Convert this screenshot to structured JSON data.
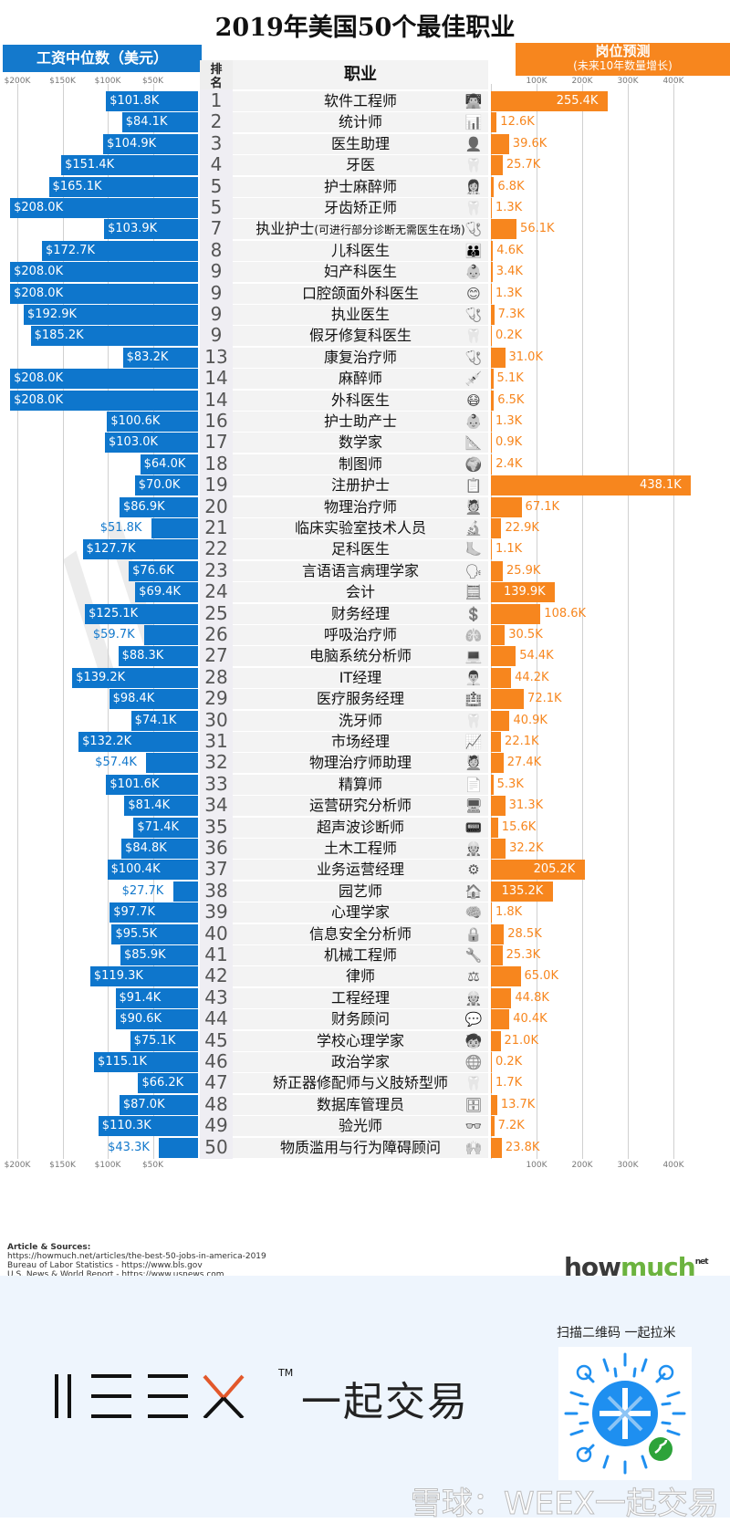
{
  "title": "2019年美国50个最佳职业",
  "headers": {
    "salary": "工资中位数（美元）",
    "rank": "排名",
    "occupation": "职业",
    "jobs_title": "岗位预测",
    "jobs_subtitle": "(未来10年数量增长)"
  },
  "salary_ticks": [
    "$200K",
    "$150K",
    "$100K",
    "$50K"
  ],
  "jobs_ticks": [
    "100K",
    "200K",
    "300K",
    "400K"
  ],
  "sources": {
    "heading": "Article & Sources:",
    "lines": [
      "https://howmuch.net/articles/the-best-50-jobs-in-america-2019",
      "Bureau of Labor Statistics - https://www.bls.gov",
      "U.S. News & World Report - https://www.usnews.com"
    ]
  },
  "brand": {
    "how": "how",
    "much": "much",
    "net": "net"
  },
  "footer": {
    "weex_tm": "TM",
    "weex_text": "一起交易",
    "qr_caption": "扫描二维码 一起拉米",
    "watermark": "雪球：WEEX一起交易"
  },
  "colors": {
    "salary": "#0e76cc",
    "jobs": "#f7861e",
    "brand_green": "#6cb33f"
  },
  "chart_data": {
    "type": "bar",
    "title": "2019年美国50个最佳职业",
    "xlabel": "",
    "series": [
      {
        "name": "工资中位数（美元）",
        "unit": "$K",
        "axis_ticks": [
          200,
          150,
          100,
          50
        ],
        "xlim": [
          0,
          210
        ],
        "direction": "leftward"
      },
      {
        "name": "岗位预测 (未来10年数量增长)",
        "unit": "K",
        "axis_ticks": [
          100,
          200,
          300,
          400
        ],
        "xlim": [
          0,
          440
        ],
        "direction": "rightward"
      }
    ],
    "grid": true,
    "rows": [
      {
        "rank": "1",
        "occupation": "软件工程师",
        "salary": 101.8,
        "salary_label": "$101.8K",
        "jobs": 255.4,
        "jobs_label": "255.4K",
        "icon": "👨‍💻"
      },
      {
        "rank": "2",
        "occupation": "统计师",
        "salary": 84.1,
        "salary_label": "$84.1K",
        "jobs": 12.6,
        "jobs_label": "12.6K",
        "icon": "📊"
      },
      {
        "rank": "3",
        "occupation": "医生助理",
        "salary": 104.9,
        "salary_label": "$104.9K",
        "jobs": 39.6,
        "jobs_label": "39.6K",
        "icon": "👤"
      },
      {
        "rank": "4",
        "occupation": "牙医",
        "salary": 151.4,
        "salary_label": "$151.4K",
        "jobs": 25.7,
        "jobs_label": "25.7K",
        "icon": "🦷"
      },
      {
        "rank": "5",
        "occupation": "护士麻醉师",
        "salary": 165.1,
        "salary_label": "$165.1K",
        "jobs": 6.8,
        "jobs_label": "6.8K",
        "icon": "👩‍⚕️"
      },
      {
        "rank": "5",
        "occupation": "牙齿矫正师",
        "salary": 208.0,
        "salary_label": "$208.0K",
        "jobs": 1.3,
        "jobs_label": "1.3K",
        "icon": "🦷"
      },
      {
        "rank": "7",
        "occupation": "执业护士",
        "occupation_note": "(可进行部分诊断无需医生在场)",
        "salary": 103.9,
        "salary_label": "$103.9K",
        "jobs": 56.1,
        "jobs_label": "56.1K",
        "icon": "🩺"
      },
      {
        "rank": "8",
        "occupation": "儿科医生",
        "salary": 172.7,
        "salary_label": "$172.7K",
        "jobs": 4.6,
        "jobs_label": "4.6K",
        "icon": "👪"
      },
      {
        "rank": "9",
        "occupation": "妇产科医生",
        "salary": 208.0,
        "salary_label": "$208.0K",
        "jobs": 3.4,
        "jobs_label": "3.4K",
        "icon": "👶"
      },
      {
        "rank": "9",
        "occupation": "口腔颌面外科医生",
        "salary": 208.0,
        "salary_label": "$208.0K",
        "jobs": 1.3,
        "jobs_label": "1.3K",
        "icon": "😊"
      },
      {
        "rank": "9",
        "occupation": "执业医生",
        "salary": 192.9,
        "salary_label": "$192.9K",
        "jobs": 7.3,
        "jobs_label": "7.3K",
        "icon": "🩺"
      },
      {
        "rank": "9",
        "occupation": "假牙修复科医生",
        "salary": 185.2,
        "salary_label": "$185.2K",
        "jobs": 0.2,
        "jobs_label": "0.2K",
        "icon": "🦷"
      },
      {
        "rank": "13",
        "occupation": "康复治疗师",
        "salary": 83.2,
        "salary_label": "$83.2K",
        "jobs": 31.0,
        "jobs_label": "31.0K",
        "icon": "🩺"
      },
      {
        "rank": "14",
        "occupation": "麻醉师",
        "salary": 208.0,
        "salary_label": "$208.0K",
        "jobs": 5.1,
        "jobs_label": "5.1K",
        "icon": "💉"
      },
      {
        "rank": "14",
        "occupation": "外科医生",
        "salary": 208.0,
        "salary_label": "$208.0K",
        "jobs": 6.5,
        "jobs_label": "6.5K",
        "icon": "😷"
      },
      {
        "rank": "16",
        "occupation": "护士助产士",
        "salary": 100.6,
        "salary_label": "$100.6K",
        "jobs": 1.3,
        "jobs_label": "1.3K",
        "icon": "👶"
      },
      {
        "rank": "17",
        "occupation": "数学家",
        "salary": 103.0,
        "salary_label": "$103.0K",
        "jobs": 0.9,
        "jobs_label": "0.9K",
        "icon": "📐"
      },
      {
        "rank": "18",
        "occupation": "制图师",
        "salary": 64.0,
        "salary_label": "$64.0K",
        "jobs": 2.4,
        "jobs_label": "2.4K",
        "icon": "🌍"
      },
      {
        "rank": "19",
        "occupation": "注册护士",
        "salary": 70.0,
        "salary_label": "$70.0K",
        "jobs": 438.1,
        "jobs_label": "438.1K",
        "icon": "📋"
      },
      {
        "rank": "20",
        "occupation": "物理治疗师",
        "salary": 86.9,
        "salary_label": "$86.9K",
        "jobs": 67.1,
        "jobs_label": "67.1K",
        "icon": "💆"
      },
      {
        "rank": "21",
        "occupation": "临床实验室技术人员",
        "salary": 51.8,
        "salary_label": "$51.8K",
        "jobs": 22.9,
        "jobs_label": "22.9K",
        "icon": "🔬"
      },
      {
        "rank": "22",
        "occupation": "足科医生",
        "salary": 127.7,
        "salary_label": "$127.7K",
        "jobs": 1.1,
        "jobs_label": "1.1K",
        "icon": "🦶"
      },
      {
        "rank": "23",
        "occupation": "言语语言病理学家",
        "salary": 76.6,
        "salary_label": "$76.6K",
        "jobs": 25.9,
        "jobs_label": "25.9K",
        "icon": "🗣"
      },
      {
        "rank": "24",
        "occupation": "会计",
        "salary": 69.4,
        "salary_label": "$69.4K",
        "jobs": 139.9,
        "jobs_label": "139.9K",
        "icon": "🧮"
      },
      {
        "rank": "25",
        "occupation": "财务经理",
        "salary": 125.1,
        "salary_label": "$125.1K",
        "jobs": 108.6,
        "jobs_label": "108.6K",
        "icon": "💲"
      },
      {
        "rank": "26",
        "occupation": "呼吸治疗师",
        "salary": 59.7,
        "salary_label": "$59.7K",
        "jobs": 30.5,
        "jobs_label": "30.5K",
        "icon": "🫁"
      },
      {
        "rank": "27",
        "occupation": "电脑系统分析师",
        "salary": 88.3,
        "salary_label": "$88.3K",
        "jobs": 54.4,
        "jobs_label": "54.4K",
        "icon": "💻"
      },
      {
        "rank": "28",
        "occupation": "IT经理",
        "salary": 139.2,
        "salary_label": "$139.2K",
        "jobs": 44.2,
        "jobs_label": "44.2K",
        "icon": "👨‍💼"
      },
      {
        "rank": "29",
        "occupation": "医疗服务经理",
        "salary": 98.4,
        "salary_label": "$98.4K",
        "jobs": 72.1,
        "jobs_label": "72.1K",
        "icon": "🏥"
      },
      {
        "rank": "30",
        "occupation": "洗牙师",
        "salary": 74.1,
        "salary_label": "$74.1K",
        "jobs": 40.9,
        "jobs_label": "40.9K",
        "icon": "🦷"
      },
      {
        "rank": "31",
        "occupation": "市场经理",
        "salary": 132.2,
        "salary_label": "$132.2K",
        "jobs": 22.1,
        "jobs_label": "22.1K",
        "icon": "📈"
      },
      {
        "rank": "32",
        "occupation": "物理治疗师助理",
        "salary": 57.4,
        "salary_label": "$57.4K",
        "jobs": 27.4,
        "jobs_label": "27.4K",
        "icon": "💆"
      },
      {
        "rank": "33",
        "occupation": "精算师",
        "salary": 101.6,
        "salary_label": "$101.6K",
        "jobs": 5.3,
        "jobs_label": "5.3K",
        "icon": "📄"
      },
      {
        "rank": "34",
        "occupation": "运营研究分析师",
        "salary": 81.4,
        "salary_label": "$81.4K",
        "jobs": 31.3,
        "jobs_label": "31.3K",
        "icon": "🖥"
      },
      {
        "rank": "35",
        "occupation": "超声波诊断师",
        "salary": 71.4,
        "salary_label": "$71.4K",
        "jobs": 15.6,
        "jobs_label": "15.6K",
        "icon": "📟"
      },
      {
        "rank": "36",
        "occupation": "土木工程师",
        "salary": 84.8,
        "salary_label": "$84.8K",
        "jobs": 32.2,
        "jobs_label": "32.2K",
        "icon": "👷"
      },
      {
        "rank": "37",
        "occupation": "业务运营经理",
        "salary": 100.4,
        "salary_label": "$100.4K",
        "jobs": 205.2,
        "jobs_label": "205.2K",
        "icon": "⚙"
      },
      {
        "rank": "38",
        "occupation": "园艺师",
        "salary": 27.7,
        "salary_label": "$27.7K",
        "jobs": 135.2,
        "jobs_label": "135.2K",
        "icon": "🏠"
      },
      {
        "rank": "39",
        "occupation": "心理学家",
        "salary": 97.7,
        "salary_label": "$97.7K",
        "jobs": 1.8,
        "jobs_label": "1.8K",
        "icon": "🧠"
      },
      {
        "rank": "40",
        "occupation": "信息安全分析师",
        "salary": 95.5,
        "salary_label": "$95.5K",
        "jobs": 28.5,
        "jobs_label": "28.5K",
        "icon": "🔒"
      },
      {
        "rank": "41",
        "occupation": "机械工程师",
        "salary": 85.9,
        "salary_label": "$85.9K",
        "jobs": 25.3,
        "jobs_label": "25.3K",
        "icon": "🔧"
      },
      {
        "rank": "42",
        "occupation": "律师",
        "salary": 119.3,
        "salary_label": "$119.3K",
        "jobs": 65.0,
        "jobs_label": "65.0K",
        "icon": "⚖"
      },
      {
        "rank": "43",
        "occupation": "工程经理",
        "salary": 91.4,
        "salary_label": "$91.4K",
        "jobs": 44.8,
        "jobs_label": "44.8K",
        "icon": "👷"
      },
      {
        "rank": "44",
        "occupation": "财务顾问",
        "salary": 90.6,
        "salary_label": "$90.6K",
        "jobs": 40.4,
        "jobs_label": "40.4K",
        "icon": "💬"
      },
      {
        "rank": "45",
        "occupation": "学校心理学家",
        "salary": 75.1,
        "salary_label": "$75.1K",
        "jobs": 21.0,
        "jobs_label": "21.0K",
        "icon": "🧒"
      },
      {
        "rank": "46",
        "occupation": "政治学家",
        "salary": 115.1,
        "salary_label": "$115.1K",
        "jobs": 0.2,
        "jobs_label": "0.2K",
        "icon": "🌐"
      },
      {
        "rank": "47",
        "occupation": "矫正器修配师与义肢矫型师",
        "salary": 66.2,
        "salary_label": "$66.2K",
        "jobs": 1.7,
        "jobs_label": "1.7K",
        "icon": "🦷"
      },
      {
        "rank": "48",
        "occupation": "数据库管理员",
        "salary": 87.0,
        "salary_label": "$87.0K",
        "jobs": 13.7,
        "jobs_label": "13.7K",
        "icon": "🗄"
      },
      {
        "rank": "49",
        "occupation": "验光师",
        "salary": 110.3,
        "salary_label": "$110.3K",
        "jobs": 7.2,
        "jobs_label": "7.2K",
        "icon": "👓"
      },
      {
        "rank": "50",
        "occupation": "物质滥用与行为障碍顾问",
        "salary": 43.3,
        "salary_label": "$43.3K",
        "jobs": 23.8,
        "jobs_label": "23.8K",
        "icon": "🙌"
      }
    ]
  }
}
